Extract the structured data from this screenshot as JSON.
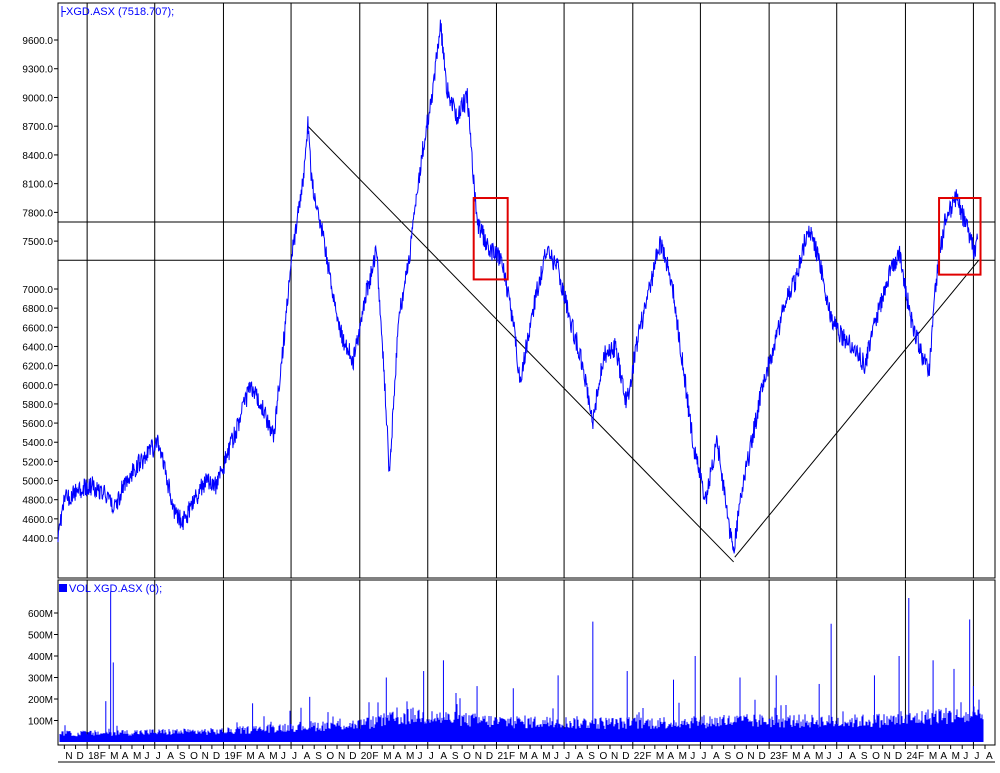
{
  "colors": {
    "background": "#ffffff",
    "price_line": "#0000ff",
    "volume_bars": "#0000ff",
    "grid": "#000000",
    "trend_lines": "#000000",
    "highlight_boxes": "#e00000",
    "label_text": "#0000ff",
    "axis_text": "#000000"
  },
  "chart_data": [
    {
      "type": "line",
      "legend": "XGD.ASX (7518.707);",
      "legend_icon": "bar-line-icon",
      "ylim": [
        4150,
        9900
      ],
      "yticks": [
        "9600.0",
        "9300.0",
        "9000.0",
        "8700.0",
        "8400.0",
        "8100.0",
        "7800.0",
        "7500.0",
        "7000.0",
        "6800.0",
        "6600.0",
        "6400.0",
        "6200.0",
        "6000.0",
        "5800.0",
        "5600.0",
        "5400.0",
        "5200.0",
        "5000.0",
        "4800.0",
        "4600.0",
        "4400.0"
      ],
      "x_range": [
        "2017-10-15",
        "2024-08-01"
      ],
      "grid": "vertical lines at each January and July",
      "series": [
        {
          "values": [
            [
              "2017-10-15",
              4450
            ],
            [
              "2017-11-01",
              4800
            ],
            [
              "2017-12-01",
              4880
            ],
            [
              "2018-01-15",
              4950
            ],
            [
              "2018-02-15",
              4880
            ],
            [
              "2018-03-15",
              4720
            ],
            [
              "2018-04-15",
              5000
            ],
            [
              "2018-05-15",
              5150
            ],
            [
              "2018-06-15",
              5300
            ],
            [
              "2018-07-10",
              5380
            ],
            [
              "2018-08-01",
              5050
            ],
            [
              "2018-08-20",
              4700
            ],
            [
              "2018-09-15",
              4560
            ],
            [
              "2018-10-15",
              4800
            ],
            [
              "2018-11-15",
              5000
            ],
            [
              "2018-12-15",
              4950
            ],
            [
              "2019-01-15",
              5300
            ],
            [
              "2019-02-15",
              5650
            ],
            [
              "2019-03-15",
              6000
            ],
            [
              "2019-04-15",
              5750
            ],
            [
              "2019-05-15",
              5450
            ],
            [
              "2019-06-15",
              6600
            ],
            [
              "2019-07-01",
              7300
            ],
            [
              "2019-08-01",
              8100
            ],
            [
              "2019-08-15",
              8700
            ],
            [
              "2019-08-25",
              8150
            ],
            [
              "2019-09-15",
              7750
            ],
            [
              "2019-10-15",
              7100
            ],
            [
              "2019-11-15",
              6500
            ],
            [
              "2019-12-15",
              6250
            ],
            [
              "2020-01-15",
              6900
            ],
            [
              "2020-02-15",
              7400
            ],
            [
              "2020-03-05",
              6200
            ],
            [
              "2020-03-20",
              5100
            ],
            [
              "2020-04-15",
              6700
            ],
            [
              "2020-05-15",
              7400
            ],
            [
              "2020-06-15",
              8400
            ],
            [
              "2020-07-15",
              9100
            ],
            [
              "2020-08-05",
              9750
            ],
            [
              "2020-08-20",
              9100
            ],
            [
              "2020-09-15",
              8800
            ],
            [
              "2020-10-15",
              9000
            ],
            [
              "2020-11-10",
              7700
            ],
            [
              "2020-12-15",
              7400
            ],
            [
              "2021-01-15",
              7300
            ],
            [
              "2021-02-15",
              6650
            ],
            [
              "2021-03-05",
              6050
            ],
            [
              "2021-04-15",
              6900
            ],
            [
              "2021-05-15",
              7400
            ],
            [
              "2021-06-15",
              7200
            ],
            [
              "2021-07-15",
              6700
            ],
            [
              "2021-08-15",
              6300
            ],
            [
              "2021-09-15",
              5600
            ],
            [
              "2021-10-15",
              6300
            ],
            [
              "2021-11-15",
              6400
            ],
            [
              "2021-12-15",
              5800
            ],
            [
              "2022-01-15",
              6500
            ],
            [
              "2022-02-15",
              7000
            ],
            [
              "2022-03-15",
              7500
            ],
            [
              "2022-04-15",
              7100
            ],
            [
              "2022-05-15",
              6200
            ],
            [
              "2022-06-15",
              5300
            ],
            [
              "2022-07-15",
              4800
            ],
            [
              "2022-08-15",
              5400
            ],
            [
              "2022-09-15",
              4550
            ],
            [
              "2022-09-28",
              4250
            ],
            [
              "2022-10-15",
              4800
            ],
            [
              "2022-11-15",
              5400
            ],
            [
              "2022-12-15",
              6000
            ],
            [
              "2023-01-15",
              6400
            ],
            [
              "2023-02-15",
              6900
            ],
            [
              "2023-03-15",
              7100
            ],
            [
              "2023-04-15",
              7650
            ],
            [
              "2023-05-15",
              7300
            ],
            [
              "2023-06-15",
              6700
            ],
            [
              "2023-07-15",
              6500
            ],
            [
              "2023-08-15",
              6400
            ],
            [
              "2023-09-15",
              6200
            ],
            [
              "2023-10-15",
              6700
            ],
            [
              "2023-11-15",
              7100
            ],
            [
              "2023-12-15",
              7400
            ],
            [
              "2024-01-15",
              6700
            ],
            [
              "2024-02-15",
              6300
            ],
            [
              "2024-03-05",
              6150
            ],
            [
              "2024-03-20",
              7000
            ],
            [
              "2024-04-15",
              7700
            ],
            [
              "2024-05-15",
              7950
            ],
            [
              "2024-06-15",
              7650
            ],
            [
              "2024-07-05",
              7350
            ],
            [
              "2024-07-12",
              7519
            ]
          ]
        }
      ],
      "trend_lines": [
        {
          "from": [
            "2019-08-15",
            8700
          ],
          "to": [
            "2022-09-28",
            4150
          ]
        },
        {
          "from": [
            "2022-10-01",
            4200
          ],
          "to": [
            "2024-07-15",
            7300
          ]
        }
      ],
      "horizontal_lines": [
        7700,
        7300
      ],
      "highlight_boxes": [
        {
          "x": [
            "2020-11-01",
            "2021-01-31"
          ],
          "y": [
            7100,
            7950
          ]
        },
        {
          "x": [
            "2024-03-31",
            "2024-07-20"
          ],
          "y": [
            7150,
            7950
          ]
        }
      ]
    },
    {
      "type": "bar",
      "legend": "VOL XGD.ASX (0);",
      "legend_icon": "volume-bar-icon",
      "ylim": [
        0,
        720
      ],
      "unit": "M",
      "yticks": [
        "600M",
        "500M",
        "400M",
        "300M",
        "200M",
        "100M"
      ],
      "baseline_levels": [
        [
          "2017-10-15",
          45
        ],
        [
          "2018-06-01",
          55
        ],
        [
          "2019-01-01",
          60
        ],
        [
          "2019-07-01",
          85
        ],
        [
          "2020-01-01",
          100
        ],
        [
          "2020-03-15",
          125
        ],
        [
          "2020-06-01",
          150
        ],
        [
          "2020-09-01",
          130
        ],
        [
          "2021-01-01",
          115
        ],
        [
          "2021-07-01",
          110
        ],
        [
          "2022-01-01",
          105
        ],
        [
          "2022-07-01",
          115
        ],
        [
          "2023-01-01",
          120
        ],
        [
          "2023-07-01",
          115
        ],
        [
          "2024-01-01",
          125
        ],
        [
          "2024-04-01",
          150
        ],
        [
          "2024-07-12",
          140
        ]
      ],
      "spikes": [
        [
          "2018-03-05",
          700
        ],
        [
          "2018-03-12",
          370
        ],
        [
          "2018-02-20",
          190
        ],
        [
          "2019-03-20",
          180
        ],
        [
          "2019-08-20",
          210
        ],
        [
          "2020-03-12",
          300
        ],
        [
          "2020-06-20",
          330
        ],
        [
          "2020-08-12",
          380
        ],
        [
          "2020-11-10",
          260
        ],
        [
          "2021-02-15",
          250
        ],
        [
          "2021-06-15",
          310
        ],
        [
          "2021-09-16",
          560
        ],
        [
          "2021-12-17",
          330
        ],
        [
          "2022-04-20",
          290
        ],
        [
          "2022-06-17",
          400
        ],
        [
          "2022-10-15",
          300
        ],
        [
          "2023-01-20",
          310
        ],
        [
          "2023-05-15",
          270
        ],
        [
          "2023-06-16",
          550
        ],
        [
          "2023-10-10",
          310
        ],
        [
          "2023-12-15",
          400
        ],
        [
          "2024-01-10",
          670
        ],
        [
          "2024-03-15",
          380
        ],
        [
          "2024-05-10",
          340
        ],
        [
          "2024-06-21",
          570
        ],
        [
          "2024-07-01",
          260
        ]
      ]
    }
  ],
  "x_axis": {
    "labels": [
      {
        "date": "2017-11-01",
        "label": "N"
      },
      {
        "date": "2017-12-01",
        "label": "D"
      },
      {
        "date": "2018-01-01",
        "label": "18"
      },
      {
        "date": "2018-02-01",
        "label": "F"
      },
      {
        "date": "2018-03-01",
        "label": "M"
      },
      {
        "date": "2018-04-01",
        "label": "A"
      },
      {
        "date": "2018-05-01",
        "label": "M"
      },
      {
        "date": "2018-06-01",
        "label": "J"
      },
      {
        "date": "2018-07-01",
        "label": "J"
      },
      {
        "date": "2018-08-01",
        "label": "A"
      },
      {
        "date": "2018-09-01",
        "label": "S"
      },
      {
        "date": "2018-10-01",
        "label": "O"
      },
      {
        "date": "2018-11-01",
        "label": "N"
      },
      {
        "date": "2018-12-01",
        "label": "D"
      },
      {
        "date": "2019-01-01",
        "label": "19"
      },
      {
        "date": "2019-02-01",
        "label": "F"
      },
      {
        "date": "2019-03-01",
        "label": "M"
      },
      {
        "date": "2019-04-01",
        "label": "A"
      },
      {
        "date": "2019-05-01",
        "label": "M"
      },
      {
        "date": "2019-06-01",
        "label": "J"
      },
      {
        "date": "2019-07-01",
        "label": "J"
      },
      {
        "date": "2019-08-01",
        "label": "A"
      },
      {
        "date": "2019-09-01",
        "label": "S"
      },
      {
        "date": "2019-10-01",
        "label": "O"
      },
      {
        "date": "2019-11-01",
        "label": "N"
      },
      {
        "date": "2019-12-01",
        "label": "D"
      },
      {
        "date": "2020-01-01",
        "label": "20"
      },
      {
        "date": "2020-02-01",
        "label": "F"
      },
      {
        "date": "2020-03-01",
        "label": "M"
      },
      {
        "date": "2020-04-01",
        "label": "A"
      },
      {
        "date": "2020-05-01",
        "label": "M"
      },
      {
        "date": "2020-06-01",
        "label": "J"
      },
      {
        "date": "2020-07-01",
        "label": "J"
      },
      {
        "date": "2020-08-01",
        "label": "A"
      },
      {
        "date": "2020-09-01",
        "label": "S"
      },
      {
        "date": "2020-10-01",
        "label": "O"
      },
      {
        "date": "2020-11-01",
        "label": "N"
      },
      {
        "date": "2020-12-01",
        "label": "D"
      },
      {
        "date": "2021-01-01",
        "label": "21"
      },
      {
        "date": "2021-02-01",
        "label": "F"
      },
      {
        "date": "2021-03-01",
        "label": "M"
      },
      {
        "date": "2021-04-01",
        "label": "A"
      },
      {
        "date": "2021-05-01",
        "label": "M"
      },
      {
        "date": "2021-06-01",
        "label": "J"
      },
      {
        "date": "2021-07-01",
        "label": "J"
      },
      {
        "date": "2021-08-01",
        "label": "A"
      },
      {
        "date": "2021-09-01",
        "label": "S"
      },
      {
        "date": "2021-10-01",
        "label": "O"
      },
      {
        "date": "2021-11-01",
        "label": "N"
      },
      {
        "date": "2021-12-01",
        "label": "D"
      },
      {
        "date": "2022-01-01",
        "label": "22"
      },
      {
        "date": "2022-02-01",
        "label": "F"
      },
      {
        "date": "2022-03-01",
        "label": "M"
      },
      {
        "date": "2022-04-01",
        "label": "A"
      },
      {
        "date": "2022-05-01",
        "label": "M"
      },
      {
        "date": "2022-06-01",
        "label": "J"
      },
      {
        "date": "2022-07-01",
        "label": "J"
      },
      {
        "date": "2022-08-01",
        "label": "A"
      },
      {
        "date": "2022-09-01",
        "label": "S"
      },
      {
        "date": "2022-10-01",
        "label": "O"
      },
      {
        "date": "2022-11-01",
        "label": "N"
      },
      {
        "date": "2022-12-01",
        "label": "D"
      },
      {
        "date": "2023-01-01",
        "label": "23"
      },
      {
        "date": "2023-02-01",
        "label": "F"
      },
      {
        "date": "2023-03-01",
        "label": "M"
      },
      {
        "date": "2023-04-01",
        "label": "A"
      },
      {
        "date": "2023-05-01",
        "label": "M"
      },
      {
        "date": "2023-06-01",
        "label": "J"
      },
      {
        "date": "2023-07-01",
        "label": "J"
      },
      {
        "date": "2023-08-01",
        "label": "A"
      },
      {
        "date": "2023-09-01",
        "label": "S"
      },
      {
        "date": "2023-10-01",
        "label": "O"
      },
      {
        "date": "2023-11-01",
        "label": "N"
      },
      {
        "date": "2023-12-01",
        "label": "D"
      },
      {
        "date": "2024-01-01",
        "label": "24"
      },
      {
        "date": "2024-02-01",
        "label": "F"
      },
      {
        "date": "2024-03-01",
        "label": "M"
      },
      {
        "date": "2024-04-01",
        "label": "A"
      },
      {
        "date": "2024-05-01",
        "label": "M"
      },
      {
        "date": "2024-06-01",
        "label": "J"
      },
      {
        "date": "2024-07-01",
        "label": "J"
      },
      {
        "date": "2024-08-01",
        "label": "A"
      }
    ]
  }
}
